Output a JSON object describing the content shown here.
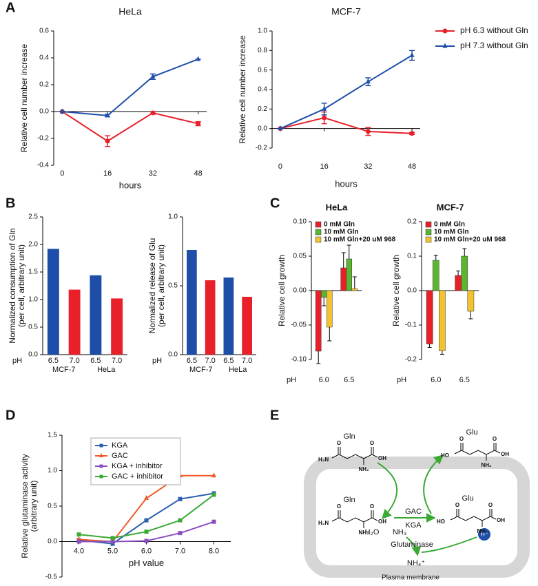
{
  "panel_labels": [
    "A",
    "B",
    "C",
    "D",
    "E"
  ],
  "chart_data": [
    {
      "type": "line",
      "title": "HeLa",
      "xlabel": "hours",
      "ylabel": [
        "Relative cell number increase"
      ],
      "x": [
        0,
        16,
        32,
        48
      ],
      "xlim": [
        -3,
        51
      ],
      "xticks": [
        0,
        16,
        32,
        48
      ],
      "ylim": [
        -0.4,
        0.6
      ],
      "yticks": [
        -0.4,
        -0.2,
        {
          "value": 0,
          "label": "0.0"
        },
        0.2,
        0.4,
        0.6
      ],
      "zero_axis": true,
      "series": [
        {
          "color": "#e8202a",
          "marker": "circle",
          "values": [
            0,
            -0.22,
            -0.01,
            -0.09
          ],
          "errors": [
            0,
            0.04,
            0.01,
            0.015
          ]
        },
        {
          "color": "#1f4ea8",
          "marker": "triangle",
          "values": [
            0,
            -0.03,
            0.26,
            0.39
          ],
          "errors": [
            0,
            0.01,
            0.02,
            0
          ]
        }
      ]
    },
    {
      "type": "line",
      "title": "MCF-7",
      "xlabel": "hours",
      "ylabel": [
        "Relative cell number increase"
      ],
      "x": [
        0,
        16,
        32,
        48
      ],
      "xlim": [
        -3,
        51
      ],
      "xticks": [
        0,
        16,
        32,
        48
      ],
      "ylim": [
        -0.2,
        1.0
      ],
      "yticks": [
        -0.2,
        {
          "value": 0,
          "label": "0.0"
        },
        0.2,
        0.4,
        0.6,
        0.8,
        {
          "value": 1,
          "label": "1.0"
        }
      ],
      "zero_axis": true,
      "legend": "outside right",
      "series": [
        {
          "name": "pH 6.3 without Gln",
          "color": "#e8202a",
          "marker": "circle",
          "values": [
            0,
            0.11,
            -0.03,
            -0.05
          ],
          "errors": [
            0,
            0.06,
            0.04,
            0.01
          ]
        },
        {
          "name": "pH 7.3 without Gln",
          "color": "#1f4ea8",
          "marker": "triangle",
          "values": [
            0,
            0.2,
            0.48,
            0.75
          ],
          "errors": [
            0,
            0.06,
            0.04,
            0.05
          ]
        }
      ]
    },
    {
      "type": "bar",
      "ylabel": [
        "Normalized consumption of Gln",
        "(per cell, arbitrary unit)"
      ],
      "x_prefix": "pH",
      "categories": [
        "6.5",
        "7.0",
        "6.5",
        "7.0"
      ],
      "groups": [
        "MCF-7",
        "HeLa"
      ],
      "values": [
        1.92,
        1.18,
        1.44,
        1.02
      ],
      "colors": [
        "#1f4ea8",
        "#e8202a",
        "#1f4ea8",
        "#e8202a"
      ],
      "ylim": [
        0,
        2.5
      ],
      "yticks": [
        {
          "value": 0,
          "label": "0.0"
        },
        0.5,
        {
          "value": 1,
          "label": "1.0"
        },
        1.5,
        {
          "value": 2,
          "label": "2.0"
        },
        2.5
      ]
    },
    {
      "type": "bar",
      "ylabel": [
        "Normalized release of Glu",
        "(per cell, arbitrary unit)"
      ],
      "x_prefix": "pH",
      "categories": [
        "6.5",
        "7.0",
        "6.5",
        "7.0"
      ],
      "groups": [
        "MCF-7",
        "HeLa"
      ],
      "values": [
        0.76,
        0.54,
        0.56,
        0.42
      ],
      "colors": [
        "#1f4ea8",
        "#e8202a",
        "#1f4ea8",
        "#e8202a"
      ],
      "ylim": [
        0,
        1
      ],
      "yticks": [
        {
          "value": 0,
          "label": "0.0"
        },
        0.5,
        {
          "value": 1,
          "label": "1.0"
        }
      ]
    },
    {
      "type": "bar",
      "title": "HeLa",
      "ylabel": [
        "Relative cell growth"
      ],
      "x_prefix": "pH",
      "categories": [
        "6.0",
        "6.5"
      ],
      "ylim": [
        -0.1,
        0.1
      ],
      "yticks": [
        {
          "value": -0.1,
          "label": "-0.10"
        },
        -0.05,
        {
          "value": 0,
          "label": "0.00"
        },
        0.05,
        {
          "value": 0.1,
          "label": "0.10"
        }
      ],
      "zero_axis": true,
      "legend": "upper left",
      "series": [
        {
          "name": "0 mM Gln",
          "color": "#e8202a",
          "values": [
            -0.088,
            0.033
          ],
          "errors": [
            0.018,
            0.022
          ]
        },
        {
          "name": "10 mM Gln",
          "color": "#5cb531",
          "values": [
            -0.01,
            0.046
          ],
          "errors": [
            0.012,
            0.02
          ]
        },
        {
          "name": "10 mM Gln+20 uM 968",
          "color": "#f2c230",
          "values": [
            -0.053,
            0.003
          ],
          "errors": [
            0.02,
            0.017
          ]
        }
      ]
    },
    {
      "type": "bar",
      "title": "MCF-7",
      "ylabel": [
        "Relative cell growth"
      ],
      "x_prefix": "pH",
      "categories": [
        "6.0",
        "6.5"
      ],
      "ylim": [
        -0.2,
        0.2
      ],
      "yticks": [
        -0.2,
        -0.1,
        {
          "value": 0,
          "label": "0.0"
        },
        0.1,
        0.2
      ],
      "zero_axis": true,
      "legend": "upper left",
      "series": [
        {
          "name": "0 mM Gln",
          "color": "#e8202a",
          "values": [
            -0.155,
            0.044
          ],
          "errors": [
            0.01,
            0.013
          ]
        },
        {
          "name": "10 mM Gln",
          "color": "#5cb531",
          "values": [
            0.088,
            0.1
          ],
          "errors": [
            0.015,
            0.022
          ]
        },
        {
          "name": "10 mM Gln+20 uM 968",
          "color": "#f2c230",
          "values": [
            -0.175,
            -0.06
          ],
          "errors": [
            0.01,
            0.022
          ]
        }
      ]
    },
    {
      "type": "line",
      "xlabel": "pH value",
      "ylabel": [
        "Relative glutaminase activity",
        "(arbitrary unit)"
      ],
      "x": [
        4,
        5,
        6,
        7,
        8
      ],
      "xlim": [
        3.5,
        8.5
      ],
      "xticks": [
        {
          "value": 4,
          "label": "4.0"
        },
        {
          "value": 5,
          "label": "5.0"
        },
        {
          "value": 6,
          "label": "6.0"
        },
        {
          "value": 7,
          "label": "7.0"
        },
        {
          "value": 8,
          "label": "8.0"
        }
      ],
      "ylim": [
        -0.5,
        1.5
      ],
      "yticks": [
        -0.5,
        {
          "value": 0,
          "label": "0.0"
        },
        0.5,
        {
          "value": 1,
          "label": "1.0"
        },
        1.5
      ],
      "zero_axis": true,
      "legend": "upper left",
      "series": [
        {
          "name": "KGA",
          "color": "#2a5fb0",
          "marker": "square",
          "values": [
            0.02,
            -0.03,
            0.3,
            0.6,
            0.68
          ]
        },
        {
          "name": "GAC",
          "color": "#f05a28",
          "marker": "triangle",
          "values": [
            0.03,
            0,
            0.61,
            0.93,
            0.93
          ]
        },
        {
          "name": "KGA + inhibitor",
          "color": "#8a4fbf",
          "marker": "square",
          "values": [
            0,
            0,
            0.01,
            0.12,
            0.28
          ]
        },
        {
          "name": "GAC + inhibitor",
          "color": "#3aaa35",
          "marker": "square",
          "values": [
            0.1,
            0.05,
            0.14,
            0.3,
            0.66
          ]
        }
      ]
    }
  ],
  "diagram": {
    "molecules": [
      {
        "name": "Gln",
        "atoms": [
          "H₂N",
          "O",
          "O",
          "OH",
          "NH₂"
        ]
      },
      {
        "name": "Glu",
        "atoms": [
          "HO",
          "O",
          "O",
          "OH",
          "NH₂"
        ]
      },
      {
        "name": "Gln",
        "atoms": [
          "H₂N",
          "O",
          "O",
          "OH",
          "NH₂"
        ]
      },
      {
        "name": "Glu",
        "atoms": [
          "HO",
          "O",
          "O",
          "OH",
          "NH₂"
        ]
      }
    ],
    "enzymes": [
      "GAC",
      "KGA"
    ],
    "water": "H₂O",
    "ammonia": "NH₃",
    "enzyme_class": "Glutaminase",
    "ammonium": "NH₄⁺",
    "proton": "H⁺",
    "membrane": "Plasma membrane"
  }
}
